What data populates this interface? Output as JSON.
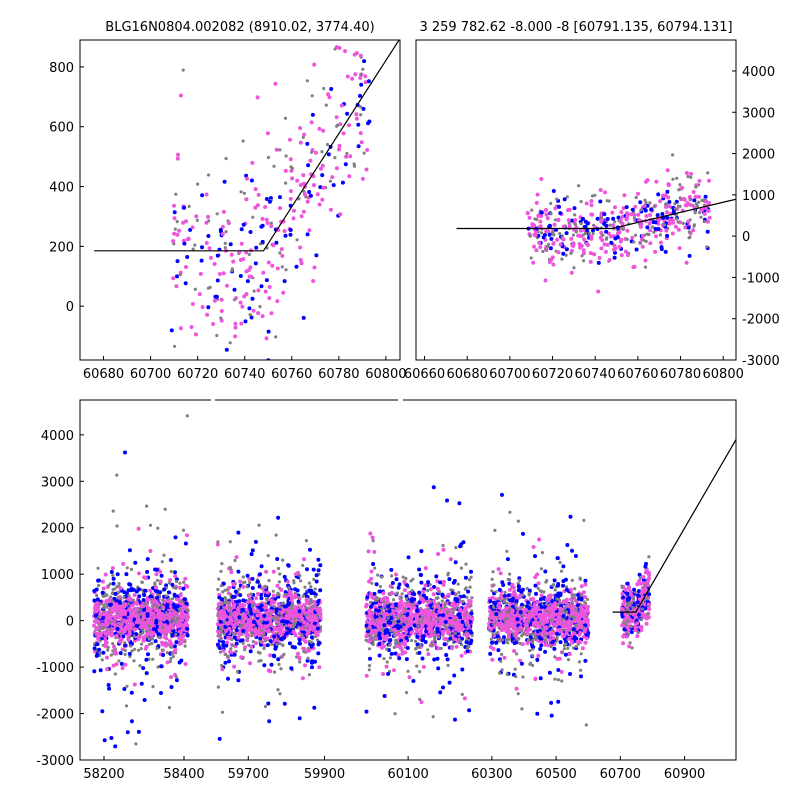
{
  "titles": {
    "left": "BLG16N0804.002082 (8910.02, 3774.40)",
    "right": "3 259 782.62 -8.000 -8 [60791.135, 60794.131]"
  },
  "colors": {
    "grey": "#808080",
    "blue": "#0000ff",
    "pink": "#ee55dd",
    "line": "#000000"
  },
  "chart_data": [
    {
      "type": "scatter",
      "panel": "top-left",
      "xlim": [
        60670,
        60806
      ],
      "ylim": [
        -180,
        890
      ],
      "xticks": [
        60680,
        60700,
        60720,
        60740,
        60760,
        60780,
        60800
      ],
      "yticks": [
        0,
        200,
        400,
        600,
        800
      ],
      "ytick_side": "left",
      "model": {
        "x": [
          60676,
          60748,
          60806
        ],
        "y": [
          185,
          185,
          895
        ]
      },
      "points_seed": 11,
      "points_range": [
        60708,
        60793
      ],
      "points_count": 380,
      "baseline_level": 185,
      "peak_level": 890
    },
    {
      "type": "scatter",
      "panel": "top-right",
      "xlim": [
        60656,
        60806
      ],
      "ylim": [
        -3000,
        4750
      ],
      "xticks": [
        60660,
        60680,
        60700,
        60720,
        60740,
        60760,
        60780,
        60800
      ],
      "yticks": [
        -3000,
        -2000,
        -1000,
        0,
        1000,
        2000,
        3000,
        4000
      ],
      "ytick_side": "right",
      "model": {
        "x": [
          60675,
          60748,
          60806
        ],
        "y": [
          185,
          185,
          895
        ]
      },
      "points_seed": 23,
      "points_range": [
        60708,
        60794
      ],
      "points_count": 520,
      "baseline_level": 185,
      "peak_level": 900
    },
    {
      "type": "scatter",
      "panel": "bottom",
      "xlim": [
        58140,
        61060
      ],
      "ylim": [
        -3000,
        4750
      ],
      "xticks": [
        58200,
        58400,
        59700,
        59900,
        60100,
        60300,
        60500,
        60700,
        60900
      ],
      "yticks": [
        -3000,
        -2000,
        -1000,
        0,
        1000,
        2000,
        3000,
        4000
      ],
      "ytick_side": "left",
      "segments": [
        {
          "xlim": [
            58140,
            58470
          ],
          "data_range": [
            58175,
            58410
          ],
          "count": 1400
        },
        {
          "xlim": [
            59610,
            59980
          ],
          "data_range": [
            59620,
            59890
          ],
          "count": 1400
        },
        {
          "xlim": [
            59980,
            60260
          ],
          "data_range": [
            60005,
            60245
          ],
          "count": 1300
        },
        {
          "xlim": [
            60260,
            61060
          ],
          "data_range": [
            60290,
            60600
          ],
          "count": 1300
        },
        {
          "xlim": [
            60260,
            61060
          ],
          "data_range": [
            60705,
            60790
          ],
          "count": 380,
          "rising": true
        }
      ],
      "model": {
        "x": [
          60676,
          60748,
          61060
        ],
        "y": [
          185,
          185,
          3900
        ]
      },
      "points_seed": 37
    }
  ]
}
